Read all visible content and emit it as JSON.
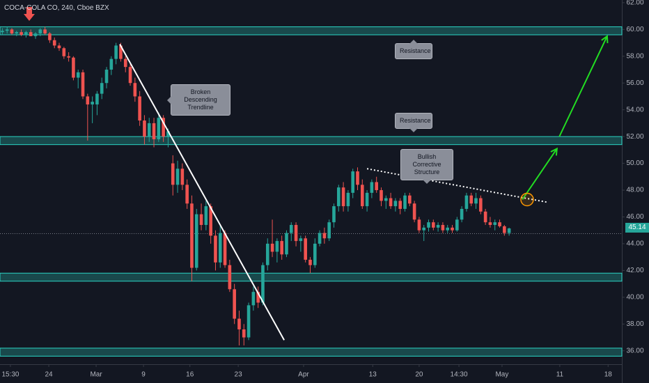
{
  "chart_data": {
    "type": "candlestick",
    "title": "COCA-COLA CO, 240, Cboe BZX",
    "up_color": "#26a69a",
    "down_color": "#ef5350",
    "grid": false,
    "xlim": [
      -0.5,
      130.8
    ],
    "ylim": [
      35,
      62.2
    ],
    "yticks": [
      {
        "value": 36,
        "label": "36.00"
      },
      {
        "value": 38,
        "label": "38.00"
      },
      {
        "value": 40,
        "label": "40.00"
      },
      {
        "value": 42,
        "label": "42.00"
      },
      {
        "value": 44,
        "label": "44.00"
      },
      {
        "value": 46,
        "label": "46.00"
      },
      {
        "value": 48,
        "label": "48.00"
      },
      {
        "value": 50,
        "label": "50.00"
      },
      {
        "value": 52,
        "label": "52.00"
      },
      {
        "value": 54,
        "label": "54.00"
      },
      {
        "value": 56,
        "label": "56.00"
      },
      {
        "value": 58,
        "label": "58.00"
      },
      {
        "value": 60,
        "label": "60.00"
      },
      {
        "value": 62,
        "label": "62.00"
      }
    ],
    "xticks": [
      {
        "value": 1.7,
        "label": "15:30"
      },
      {
        "value": 9.8,
        "label": "24"
      },
      {
        "value": 19.8,
        "label": "Mar"
      },
      {
        "value": 29.8,
        "label": "9"
      },
      {
        "value": 39.6,
        "label": "16"
      },
      {
        "value": 49.8,
        "label": "23"
      },
      {
        "value": 63.6,
        "label": "Apr"
      },
      {
        "value": 78.2,
        "label": "13"
      },
      {
        "value": 88,
        "label": "20"
      },
      {
        "value": 96.4,
        "label": "14:30"
      },
      {
        "value": 105.5,
        "label": "May"
      },
      {
        "value": 117.7,
        "label": "11"
      },
      {
        "value": 127.9,
        "label": "18"
      }
    ],
    "candles": [
      [
        59.8,
        60.1,
        59.6,
        59.9
      ],
      [
        59.9,
        60.2,
        59.7,
        60.0
      ],
      [
        60.0,
        60.1,
        59.6,
        59.7
      ],
      [
        59.7,
        59.9,
        59.5,
        59.8
      ],
      [
        59.8,
        60.0,
        59.5,
        59.6
      ],
      [
        59.6,
        59.9,
        59.4,
        59.8
      ],
      [
        59.8,
        60.0,
        59.5,
        59.5
      ],
      [
        59.5,
        59.8,
        59.3,
        59.7
      ],
      [
        59.7,
        60.1,
        59.5,
        60.0
      ],
      [
        60.0,
        60.2,
        59.6,
        59.7
      ],
      [
        59.7,
        59.8,
        59.0,
        59.2
      ],
      [
        59.2,
        59.4,
        58.6,
        58.8
      ],
      [
        58.8,
        59.0,
        58.4,
        58.6
      ],
      [
        58.6,
        58.7,
        57.8,
        58.0
      ],
      [
        58.0,
        58.3,
        57.6,
        57.9
      ],
      [
        57.9,
        58.0,
        56.2,
        56.4
      ],
      [
        56.4,
        57.0,
        55.6,
        56.8
      ],
      [
        56.8,
        57.0,
        54.8,
        55.0
      ],
      [
        55.0,
        55.2,
        51.7,
        54.4
      ],
      [
        54.4,
        55.0,
        53.0,
        54.6
      ],
      [
        54.4,
        55.4,
        53.6,
        55.2
      ],
      [
        55.2,
        56.4,
        54.8,
        56.0
      ],
      [
        56.0,
        57.2,
        55.6,
        57.0
      ],
      [
        57.0,
        58.0,
        56.6,
        57.8
      ],
      [
        57.8,
        59.0,
        57.4,
        58.8
      ],
      [
        58.8,
        59.0,
        57.6,
        57.8
      ],
      [
        57.8,
        58.0,
        56.8,
        57.2
      ],
      [
        57.2,
        57.4,
        55.8,
        56.0
      ],
      [
        56.0,
        56.4,
        54.6,
        55.0
      ],
      [
        55.0,
        55.4,
        52.8,
        53.2
      ],
      [
        53.2,
        53.6,
        51.4,
        52.0
      ],
      [
        52.0,
        53.4,
        51.6,
        53.0
      ],
      [
        53.0,
        53.4,
        51.2,
        51.8
      ],
      [
        51.8,
        53.8,
        51.6,
        53.4
      ],
      [
        53.4,
        53.6,
        51.6,
        52.0
      ],
      [
        52.0,
        52.6,
        51.2,
        52.4
      ],
      [
        50.0,
        50.6,
        47.6,
        48.4
      ],
      [
        48.4,
        50.2,
        47.8,
        49.6
      ],
      [
        49.6,
        50.0,
        48.0,
        48.4
      ],
      [
        48.4,
        48.8,
        46.6,
        47.0
      ],
      [
        47.0,
        47.6,
        41.2,
        42.2
      ],
      [
        42.2,
        46.6,
        42.0,
        46.2
      ],
      [
        46.2,
        47.0,
        45.0,
        45.4
      ],
      [
        45.4,
        47.2,
        45.0,
        46.8
      ],
      [
        46.8,
        47.0,
        44.0,
        44.6
      ],
      [
        44.6,
        45.0,
        42.0,
        42.6
      ],
      [
        42.6,
        45.4,
        42.2,
        44.8
      ],
      [
        44.8,
        45.0,
        42.2,
        42.4
      ],
      [
        42.4,
        42.8,
        40.4,
        40.6
      ],
      [
        40.6,
        41.0,
        38.0,
        38.4
      ],
      [
        38.4,
        39.0,
        36.4,
        37.6
      ],
      [
        37.6,
        38.0,
        36.4,
        37.0
      ],
      [
        37.0,
        39.6,
        36.8,
        39.4
      ],
      [
        39.4,
        40.8,
        39.0,
        40.4
      ],
      [
        40.4,
        40.8,
        39.2,
        39.6
      ],
      [
        39.6,
        42.6,
        39.4,
        42.4
      ],
      [
        42.4,
        44.4,
        42.0,
        44.0
      ],
      [
        44.0,
        45.8,
        43.0,
        43.4
      ],
      [
        43.4,
        44.4,
        42.6,
        44.2
      ],
      [
        44.2,
        44.6,
        42.8,
        43.2
      ],
      [
        43.2,
        45.0,
        43.0,
        44.8
      ],
      [
        44.8,
        45.6,
        44.2,
        45.4
      ],
      [
        45.4,
        45.6,
        43.8,
        44.2
      ],
      [
        44.2,
        44.6,
        43.4,
        44.4
      ],
      [
        44.4,
        44.6,
        42.6,
        42.8
      ],
      [
        42.8,
        43.0,
        41.8,
        42.4
      ],
      [
        42.4,
        44.4,
        42.2,
        44.0
      ],
      [
        44.0,
        45.0,
        43.8,
        44.8
      ],
      [
        44.8,
        45.2,
        44.0,
        44.4
      ],
      [
        44.4,
        45.8,
        44.2,
        45.6
      ],
      [
        45.6,
        47.0,
        45.2,
        46.8
      ],
      [
        46.8,
        48.4,
        46.4,
        48.2
      ],
      [
        48.2,
        48.6,
        46.4,
        46.8
      ],
      [
        46.8,
        48.0,
        46.4,
        47.8
      ],
      [
        47.8,
        49.6,
        47.4,
        49.4
      ],
      [
        49.4,
        49.7,
        48.0,
        48.4
      ],
      [
        48.4,
        48.8,
        46.6,
        46.8
      ],
      [
        46.8,
        48.0,
        46.4,
        47.8
      ],
      [
        47.8,
        48.8,
        47.4,
        48.6
      ],
      [
        48.6,
        49.0,
        47.8,
        48.0
      ],
      [
        48.0,
        48.2,
        46.8,
        47.2
      ],
      [
        47.2,
        47.6,
        46.6,
        47.4
      ],
      [
        47.4,
        47.8,
        46.6,
        46.8
      ],
      [
        46.8,
        47.4,
        46.4,
        47.2
      ],
      [
        47.2,
        47.4,
        46.2,
        46.6
      ],
      [
        46.6,
        47.8,
        46.4,
        47.6
      ],
      [
        47.6,
        47.8,
        46.8,
        47.0
      ],
      [
        47.0,
        47.2,
        45.6,
        45.8
      ],
      [
        45.8,
        46.0,
        44.8,
        45.0
      ],
      [
        45.0,
        45.4,
        44.2,
        45.2
      ],
      [
        45.2,
        45.8,
        44.9,
        45.6
      ],
      [
        45.6,
        45.8,
        45.0,
        45.2
      ],
      [
        45.2,
        45.6,
        44.9,
        45.4
      ],
      [
        45.4,
        45.6,
        44.8,
        45.0
      ],
      [
        45.0,
        45.4,
        44.8,
        45.2
      ],
      [
        45.2,
        45.4,
        44.8,
        45.0
      ],
      [
        45.0,
        46.0,
        44.9,
        45.8
      ],
      [
        45.8,
        46.8,
        45.6,
        46.6
      ],
      [
        46.6,
        47.8,
        46.4,
        47.6
      ],
      [
        47.6,
        47.8,
        46.8,
        47.0
      ],
      [
        47.0,
        47.8,
        46.6,
        47.4
      ],
      [
        47.4,
        47.6,
        46.2,
        46.4
      ],
      [
        46.4,
        46.6,
        45.4,
        45.6
      ],
      [
        45.6,
        46.0,
        45.2,
        45.4
      ],
      [
        45.4,
        45.8,
        45.0,
        45.6
      ],
      [
        45.6,
        45.8,
        45.2,
        45.3
      ],
      [
        45.3,
        45.4,
        44.6,
        44.8
      ],
      [
        44.8,
        45.2,
        44.6,
        45.14
      ]
    ],
    "last_price": 45.14,
    "price_line": 44.75,
    "zones": [
      [
        59.6,
        60.2
      ],
      [
        51.4,
        52.0
      ],
      [
        41.2,
        41.8
      ],
      [
        35.6,
        36.2
      ]
    ],
    "trendline": [
      [
        24.8,
        58.9
      ],
      [
        59.5,
        36.8
      ]
    ],
    "dotted_line": [
      [
        77,
        49.6
      ],
      [
        115,
        47.1
      ]
    ],
    "arrows": [
      [
        [
          109.8,
          47.3
        ],
        [
          117.1,
          51.1
        ]
      ],
      [
        [
          117.6,
          52.0
        ],
        [
          127.7,
          59.5
        ]
      ]
    ],
    "circle": [
      110.8,
      47.3
    ],
    "annotations": [
      "Resistance",
      "Resistance",
      "Broken Descending Trendline",
      "Bullish Corrective Structure"
    ]
  }
}
